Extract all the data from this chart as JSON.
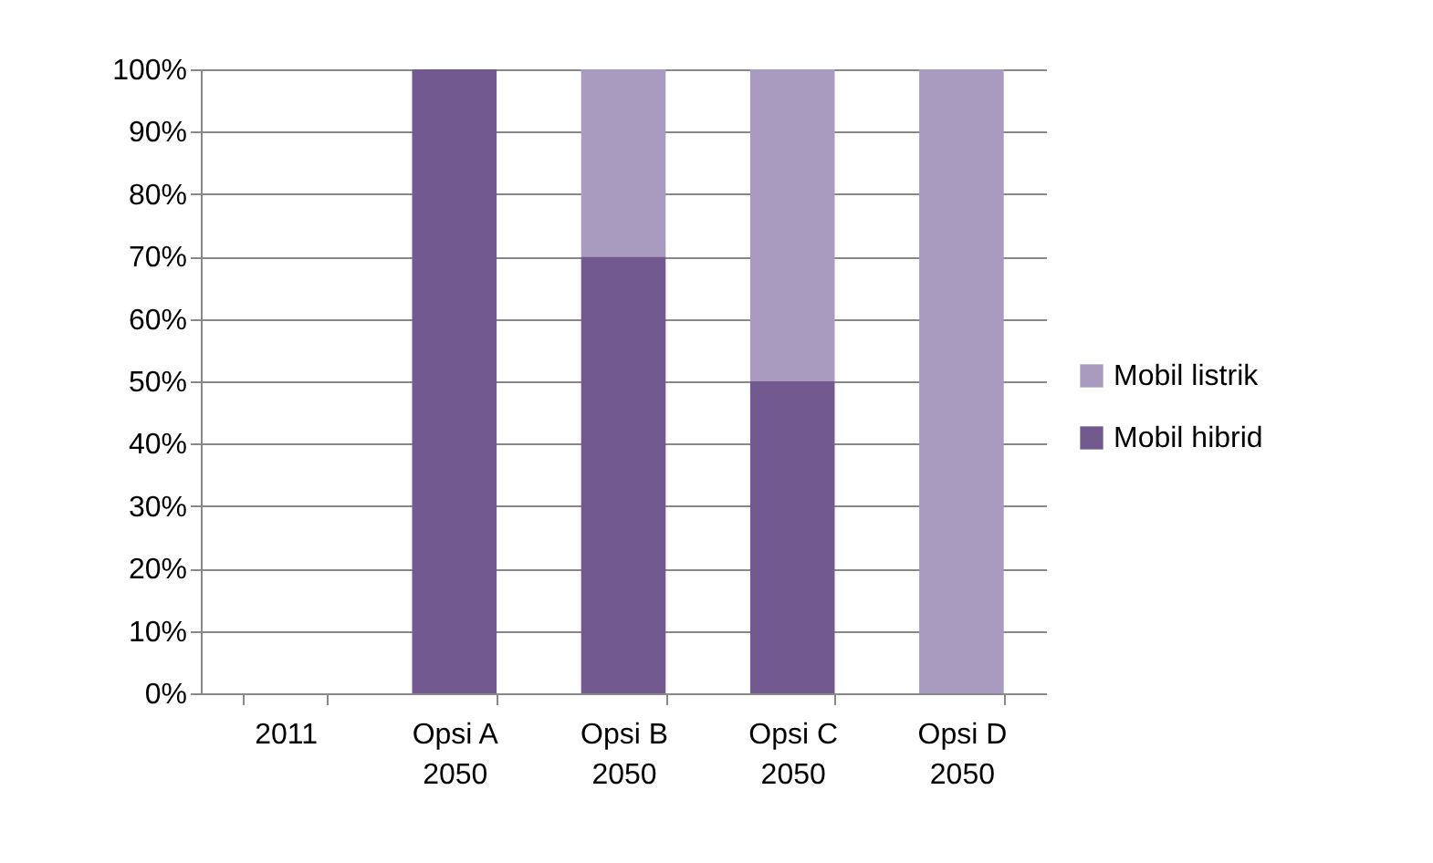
{
  "chart_data": {
    "type": "bar",
    "stacked": true,
    "categories": [
      "2011",
      "Opsi A\n2050",
      "Opsi B\n2050",
      "Opsi C\n2050",
      "Opsi D\n2050"
    ],
    "series": [
      {
        "name": "Mobil hibrid",
        "color": "#725a91",
        "values": [
          0,
          100,
          70,
          50,
          0
        ]
      },
      {
        "name": "Mobil listrik",
        "color": "#a99bc0",
        "values": [
          0,
          0,
          30,
          50,
          100
        ]
      }
    ],
    "ylim": [
      0,
      100
    ],
    "yticks": [
      {
        "value": 0,
        "label": "0%"
      },
      {
        "value": 10,
        "label": "10%"
      },
      {
        "value": 20,
        "label": "20%"
      },
      {
        "value": 30,
        "label": "30%"
      },
      {
        "value": 40,
        "label": "40%"
      },
      {
        "value": 50,
        "label": "50%"
      },
      {
        "value": 60,
        "label": "60%"
      },
      {
        "value": 70,
        "label": "70%"
      },
      {
        "value": 80,
        "label": "80%"
      },
      {
        "value": 90,
        "label": "90%"
      },
      {
        "value": 100,
        "label": "100%"
      }
    ],
    "grid": "y",
    "legend": "right"
  }
}
